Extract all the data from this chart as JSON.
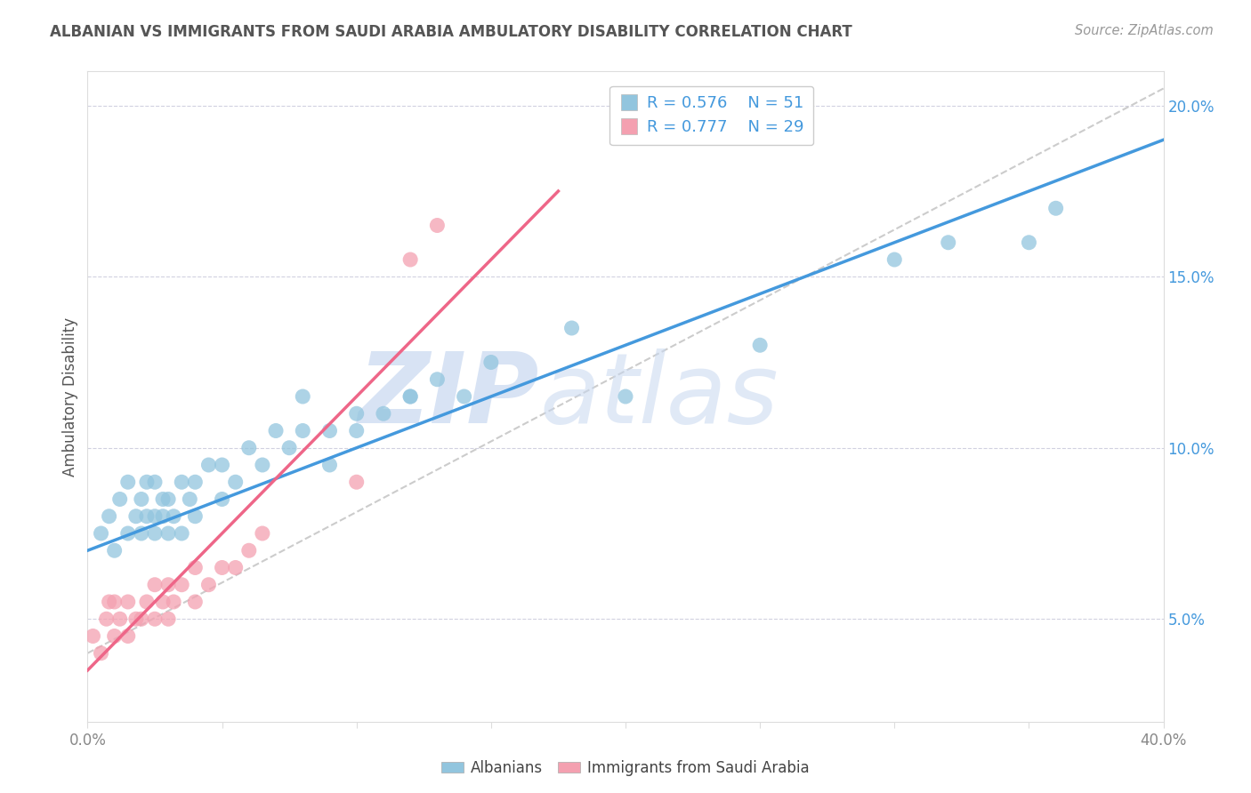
{
  "title": "ALBANIAN VS IMMIGRANTS FROM SAUDI ARABIA AMBULATORY DISABILITY CORRELATION CHART",
  "source": "Source: ZipAtlas.com",
  "ylabel": "Ambulatory Disability",
  "xlim": [
    0.0,
    0.4
  ],
  "ylim": [
    0.02,
    0.21
  ],
  "xtick_positions": [
    0.0,
    0.05,
    0.1,
    0.15,
    0.2,
    0.25,
    0.3,
    0.35,
    0.4
  ],
  "xtick_labels": [
    "0.0%",
    "",
    "",
    "",
    "",
    "",
    "",
    "",
    "40.0%"
  ],
  "ytick_positions": [
    0.05,
    0.1,
    0.15,
    0.2
  ],
  "ytick_labels": [
    "5.0%",
    "10.0%",
    "15.0%",
    "20.0%"
  ],
  "blue_R": 0.576,
  "blue_N": 51,
  "pink_R": 0.777,
  "pink_N": 29,
  "blue_color": "#92C5DE",
  "pink_color": "#F4A0B0",
  "blue_line_color": "#4499DD",
  "pink_line_color": "#EE6688",
  "ref_line_color": "#CCCCCC",
  "background_color": "#FFFFFF",
  "grid_color": "#CCCCDD",
  "watermark_zip": "ZIP",
  "watermark_atlas": "atlas",
  "watermark_color": "#C8D8F0",
  "legend_text_color": "#4499DD",
  "title_color": "#555555",
  "source_color": "#999999",
  "ylabel_color": "#555555",
  "blue_scatter_x": [
    0.005,
    0.008,
    0.01,
    0.012,
    0.015,
    0.015,
    0.018,
    0.02,
    0.02,
    0.022,
    0.022,
    0.025,
    0.025,
    0.025,
    0.028,
    0.028,
    0.03,
    0.03,
    0.032,
    0.035,
    0.035,
    0.038,
    0.04,
    0.04,
    0.045,
    0.05,
    0.05,
    0.055,
    0.06,
    0.065,
    0.07,
    0.075,
    0.08,
    0.09,
    0.1,
    0.11,
    0.12,
    0.13,
    0.15,
    0.18,
    0.2,
    0.25,
    0.3,
    0.32,
    0.35,
    0.36,
    0.08,
    0.09,
    0.1,
    0.12,
    0.14
  ],
  "blue_scatter_y": [
    0.075,
    0.08,
    0.07,
    0.085,
    0.075,
    0.09,
    0.08,
    0.075,
    0.085,
    0.08,
    0.09,
    0.075,
    0.08,
    0.09,
    0.08,
    0.085,
    0.075,
    0.085,
    0.08,
    0.075,
    0.09,
    0.085,
    0.08,
    0.09,
    0.095,
    0.085,
    0.095,
    0.09,
    0.1,
    0.095,
    0.105,
    0.1,
    0.105,
    0.095,
    0.105,
    0.11,
    0.115,
    0.12,
    0.125,
    0.135,
    0.115,
    0.13,
    0.155,
    0.16,
    0.16,
    0.17,
    0.115,
    0.105,
    0.11,
    0.115,
    0.115
  ],
  "pink_scatter_x": [
    0.002,
    0.005,
    0.007,
    0.008,
    0.01,
    0.01,
    0.012,
    0.015,
    0.015,
    0.018,
    0.02,
    0.022,
    0.025,
    0.025,
    0.028,
    0.03,
    0.03,
    0.032,
    0.035,
    0.04,
    0.04,
    0.045,
    0.05,
    0.055,
    0.06,
    0.065,
    0.1,
    0.12,
    0.13
  ],
  "pink_scatter_y": [
    0.045,
    0.04,
    0.05,
    0.055,
    0.045,
    0.055,
    0.05,
    0.045,
    0.055,
    0.05,
    0.05,
    0.055,
    0.05,
    0.06,
    0.055,
    0.05,
    0.06,
    0.055,
    0.06,
    0.055,
    0.065,
    0.06,
    0.065,
    0.065,
    0.07,
    0.075,
    0.09,
    0.155,
    0.165
  ],
  "blue_line_x": [
    0.0,
    0.4
  ],
  "blue_line_y": [
    0.07,
    0.19
  ],
  "pink_line_x": [
    0.0,
    0.175
  ],
  "pink_line_y": [
    0.035,
    0.175
  ],
  "ref_line_x": [
    0.0,
    0.4
  ],
  "ref_line_y": [
    0.04,
    0.205
  ]
}
